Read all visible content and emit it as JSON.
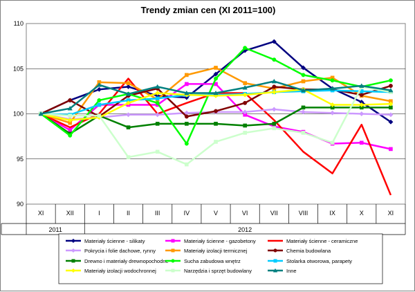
{
  "chart_data": {
    "type": "line",
    "title": "Trendy zmian cen (XI 2011=100)",
    "xlabel": "",
    "ylabel": "",
    "ylim": [
      90,
      110
    ],
    "yticks": [
      "90",
      "95",
      "100",
      "105",
      "110"
    ],
    "grid": "horizontal",
    "legend_position": "bottom",
    "categories": [
      "XI",
      "XII",
      "I",
      "II",
      "III",
      "IV",
      "V",
      "VI",
      "VII",
      "VIII",
      "IX",
      "X",
      "XI"
    ],
    "years": [
      {
        "label": "2011",
        "from": 0,
        "to": 1
      },
      {
        "label": "2012",
        "from": 2,
        "to": 12
      }
    ],
    "series": [
      {
        "name": "Materiały ścienne - silikaty",
        "color": "#000080",
        "marker": "diamond",
        "values": [
          100,
          101.5,
          102.7,
          103.0,
          102.0,
          101.8,
          104.4,
          107.0,
          108.0,
          105.1,
          102.8,
          101.3,
          99.1
        ]
      },
      {
        "name": "Materiały ścienne - gazobetony",
        "color": "#ff00ff",
        "marker": "square",
        "values": [
          100,
          98.2,
          101.0,
          101.0,
          101.0,
          103.3,
          103.3,
          99.9,
          98.6,
          98.0,
          96.7,
          96.8,
          96.1
        ]
      },
      {
        "name": "Materiały ścienne - ceramiczne",
        "color": "#ff0000",
        "marker": "none",
        "values": [
          100,
          98.5,
          100.0,
          103.9,
          100.0,
          101.2,
          102.3,
          102.3,
          99.3,
          95.8,
          93.4,
          98.8,
          91.0
        ]
      },
      {
        "name": "Pokrycia i folie dachowe, rynny",
        "color": "#cc99ff",
        "marker": "diamond",
        "values": [
          100,
          99.4,
          99.6,
          99.9,
          99.9,
          100.1,
          100.2,
          100.2,
          100.5,
          100.2,
          100.1,
          100.0,
          99.9
        ]
      },
      {
        "name": "Materiały izolacji termicznej",
        "color": "#ff9900",
        "marker": "square",
        "values": [
          100,
          99.0,
          103.5,
          103.4,
          101.6,
          104.3,
          105.1,
          103.4,
          102.8,
          103.6,
          104.0,
          102.0,
          101.4
        ]
      },
      {
        "name": "Chemia budowlana",
        "color": "#800000",
        "marker": "circle",
        "values": [
          100,
          101.5,
          99.7,
          102.0,
          102.8,
          99.7,
          100.3,
          101.2,
          103.0,
          102.7,
          102.7,
          102.1,
          103.1
        ]
      },
      {
        "name": "Drewno i materiały drewnopochodne",
        "color": "#008000",
        "marker": "square",
        "values": [
          100,
          97.8,
          99.8,
          98.5,
          98.9,
          98.9,
          98.9,
          98.7,
          98.9,
          100.7,
          100.7,
          100.7,
          100.7
        ]
      },
      {
        "name": "Sucha zabudowa wnętrz",
        "color": "#00ff00",
        "marker": "circle",
        "values": [
          100,
          97.6,
          101.5,
          102.2,
          101.2,
          96.7,
          103.9,
          107.3,
          106.0,
          104.3,
          103.7,
          103.0,
          103.7
        ]
      },
      {
        "name": "Stolarka otworowa, parapety",
        "color": "#00ccff",
        "marker": "square",
        "values": [
          100,
          99.9,
          101.0,
          101.5,
          101.7,
          102.1,
          102.1,
          102.2,
          102.4,
          102.5,
          102.6,
          102.5,
          102.4
        ]
      },
      {
        "name": "Materiały izolacji wodochronnej",
        "color": "#ffff00",
        "marker": "diamond",
        "values": [
          100,
          99.3,
          99.6,
          101.2,
          102.3,
          102.1,
          102.0,
          102.1,
          102.4,
          102.7,
          101.0,
          101.0,
          101.1
        ]
      },
      {
        "name": "Narzędzia i sprzęt budowlany",
        "color": "#ccffcc",
        "marker": "square",
        "values": [
          100,
          99.8,
          99.8,
          95.2,
          95.8,
          94.4,
          96.9,
          97.9,
          98.4,
          97.9,
          96.8,
          103.0,
          102.4
        ]
      },
      {
        "name": "Inne",
        "color": "#008080",
        "marker": "triangle",
        "values": [
          100,
          100.6,
          103.2,
          102.2,
          103.0,
          102.3,
          102.3,
          102.9,
          103.6,
          102.6,
          102.8,
          103.1,
          102.6
        ]
      }
    ]
  }
}
